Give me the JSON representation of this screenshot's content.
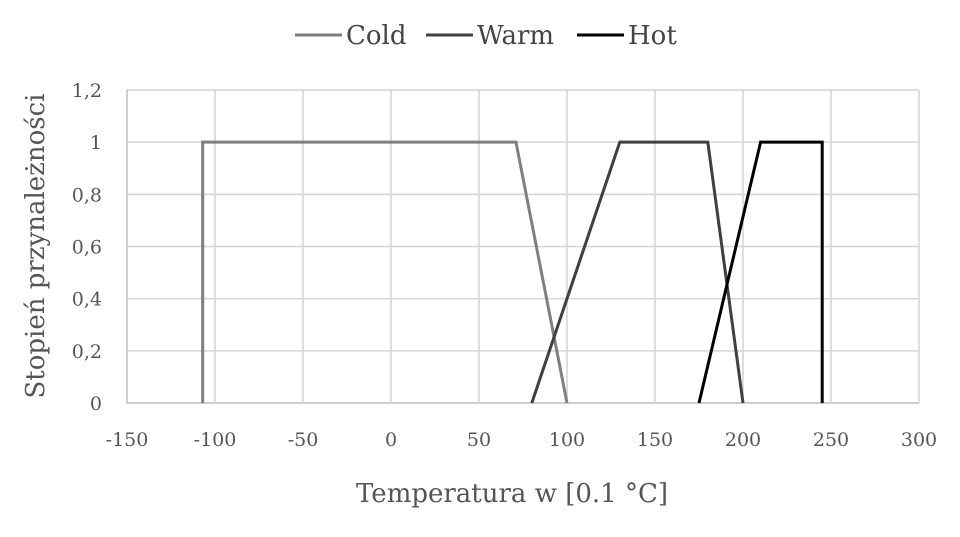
{
  "chart_data": {
    "type": "line",
    "xlabel": "Temperatura w [0.1 °C]",
    "ylabel": "Stopień przynależności",
    "xlim": [
      -150,
      300
    ],
    "ylim": [
      0,
      1.2
    ],
    "xticks": [
      {
        "value": -150,
        "label": "-150"
      },
      {
        "value": -100,
        "label": "-100"
      },
      {
        "value": -50,
        "label": "-50"
      },
      {
        "value": 0,
        "label": "0"
      },
      {
        "value": 50,
        "label": "50"
      },
      {
        "value": 100,
        "label": "100"
      },
      {
        "value": 150,
        "label": "150"
      },
      {
        "value": 200,
        "label": "200"
      },
      {
        "value": 250,
        "label": "250"
      },
      {
        "value": 300,
        "label": "300"
      }
    ],
    "yticks": [
      {
        "value": 0,
        "label": "0"
      },
      {
        "value": 0.2,
        "label": "0,2"
      },
      {
        "value": 0.4,
        "label": "0,4"
      },
      {
        "value": 0.6,
        "label": "0,6"
      },
      {
        "value": 0.8,
        "label": "0,8"
      },
      {
        "value": 1,
        "label": "1"
      },
      {
        "value": 1.2,
        "label": "1,2"
      }
    ],
    "grid": true,
    "legend": "top-center",
    "series": [
      {
        "name": "Cold",
        "color": "#7f7f7f",
        "points": [
          [
            -107,
            0
          ],
          [
            -107,
            1
          ],
          [
            71,
            1
          ],
          [
            100,
            0
          ]
        ]
      },
      {
        "name": "Warm",
        "color": "#404040",
        "points": [
          [
            80,
            0
          ],
          [
            130,
            1
          ],
          [
            180,
            1
          ],
          [
            200,
            0
          ]
        ]
      },
      {
        "name": "Hot",
        "color": "#000000",
        "points": [
          [
            175,
            0
          ],
          [
            210,
            1
          ],
          [
            245,
            1
          ],
          [
            245,
            0
          ]
        ]
      }
    ]
  }
}
